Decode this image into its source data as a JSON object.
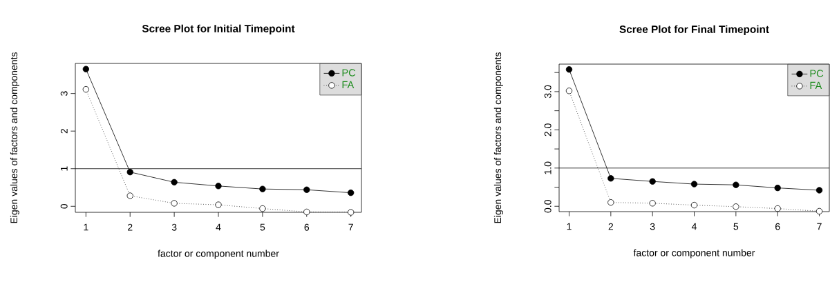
{
  "chart_data": [
    {
      "type": "line",
      "title": "Scree Plot for Initial Timepoint",
      "xlabel": "factor or component number",
      "ylabel": "Eigen values of factors and components",
      "x": [
        1,
        2,
        3,
        4,
        5,
        6,
        7
      ],
      "xlim": [
        0.76,
        7.24
      ],
      "xticks": [
        1,
        2,
        3,
        4,
        5,
        6,
        7
      ],
      "ylim": [
        -0.16,
        3.8
      ],
      "yticks": [
        0,
        1,
        2,
        3
      ],
      "ref_lines": [
        {
          "axis": "y",
          "value": 1
        }
      ],
      "legend": "top right",
      "grid": false,
      "series": [
        {
          "name": "PC",
          "color": "#000000",
          "marker": "circle",
          "line_style": "solid",
          "values": [
            3.65,
            0.91,
            0.64,
            0.54,
            0.46,
            0.44,
            0.36
          ]
        },
        {
          "name": "FA",
          "color": "#000000",
          "marker": "circle",
          "line_style": "dotted",
          "values": [
            3.11,
            0.28,
            0.08,
            0.04,
            -0.06,
            -0.15,
            -0.16
          ]
        }
      ]
    },
    {
      "type": "line",
      "title": "Scree Plot for Final Timepoint",
      "xlabel": "factor or component number",
      "ylabel": "Eigen values of factors and components",
      "x": [
        1,
        2,
        3,
        4,
        5,
        6,
        7
      ],
      "xlim": [
        0.76,
        7.24
      ],
      "xticks": [
        1,
        2,
        3,
        4,
        5,
        6,
        7
      ],
      "ylim": [
        -0.14,
        3.72
      ],
      "yticks": [
        {
          "value": 0,
          "label": "0.0"
        },
        {
          "value": 0.5,
          "label": null
        },
        {
          "value": 1,
          "label": "1.0"
        },
        {
          "value": 1.5,
          "label": null
        },
        {
          "value": 2,
          "label": "2.0"
        },
        {
          "value": 2.5,
          "label": null
        },
        {
          "value": 3,
          "label": "3.0"
        },
        {
          "value": 3.5,
          "label": null
        }
      ],
      "ref_lines": [
        {
          "axis": "y",
          "value": 1
        }
      ],
      "legend": "top right",
      "grid": false,
      "series": [
        {
          "name": "PC",
          "color": "#000000",
          "marker": "circle",
          "line_style": "solid",
          "values": [
            3.58,
            0.73,
            0.65,
            0.58,
            0.56,
            0.48,
            0.42
          ]
        },
        {
          "name": "FA",
          "color": "#000000",
          "marker": "circle",
          "line_style": "dotted",
          "values": [
            3.02,
            0.1,
            0.08,
            0.03,
            -0.01,
            -0.06,
            -0.13
          ]
        }
      ]
    }
  ]
}
